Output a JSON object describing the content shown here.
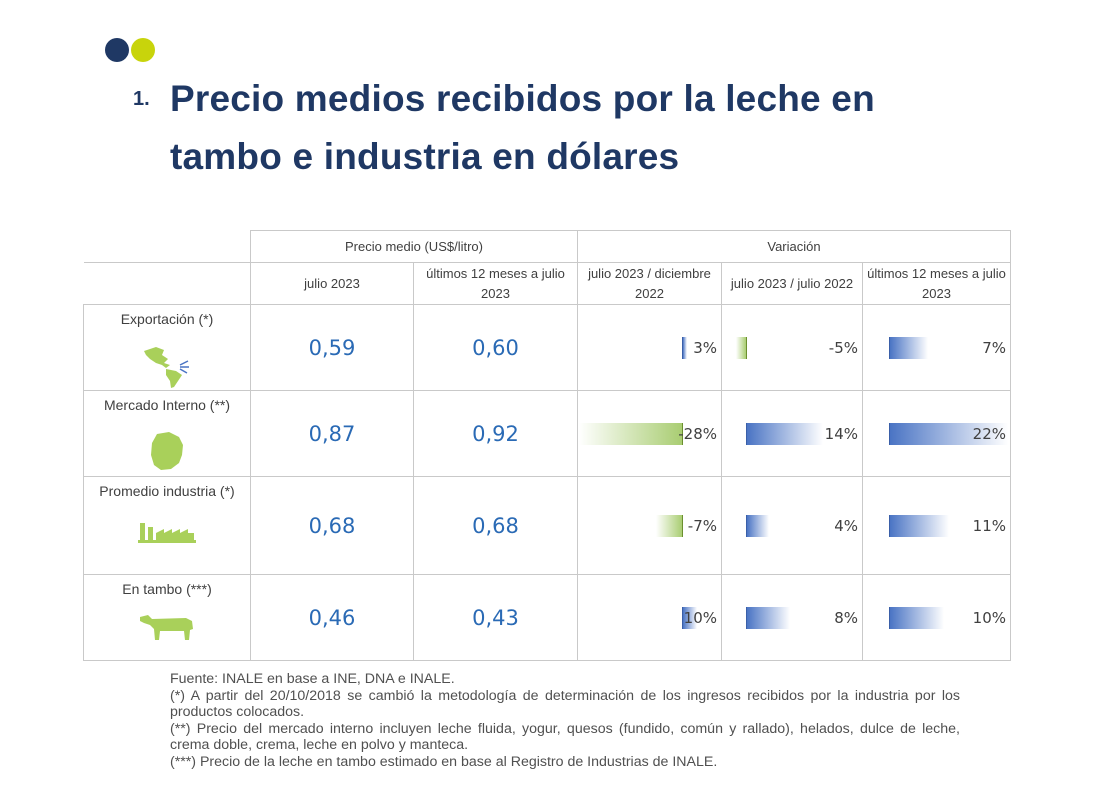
{
  "slide": {
    "number": "1.",
    "title": "Precio medios recibidos por la leche en tambo e industria en dólares"
  },
  "table": {
    "group_headers": {
      "price": "Precio medio (US$/litro)",
      "variation": "Variación"
    },
    "column_headers": [
      "julio 2023",
      "últimos 12 meses a julio 2023",
      "julio 2023 / diciembre 2022",
      "julio 2023 / julio 2022",
      "últimos 12 meses a julio 2023"
    ],
    "rows": [
      {
        "label": "Exportación (*)",
        "icon": "americas-map-icon",
        "price_month": "0,59",
        "price_12m": "0,60",
        "var_dec": "3%",
        "var_dec_value": 3,
        "var_year": "-5%",
        "var_year_value": -5,
        "var_12m": "7%",
        "var_12m_value": 7
      },
      {
        "label": "Mercado Interno (**)",
        "icon": "uruguay-map-icon",
        "price_month": "0,87",
        "price_12m": "0,92",
        "var_dec": "-28%",
        "var_dec_value": -28,
        "var_year": "14%",
        "var_year_value": 14,
        "var_12m": "22%",
        "var_12m_value": 22
      },
      {
        "label": "Promedio industria (*)",
        "icon": "factory-icon",
        "price_month": "0,68",
        "price_12m": "0,68",
        "var_dec": "-7%",
        "var_dec_value": -7,
        "var_year": "4%",
        "var_year_value": 4,
        "var_12m": "11%",
        "var_12m_value": 11
      },
      {
        "label": "En tambo (***)",
        "icon": "cow-icon",
        "price_month": "0,46",
        "price_12m": "0,43",
        "var_dec": "10%",
        "var_dec_value": 10,
        "var_year": "8%",
        "var_year_value": 8,
        "var_12m": "10%",
        "var_12m_value": 10
      }
    ]
  },
  "notes": [
    "Fuente: INALE en base a INE, DNA e INALE.",
    "(*) A partir del 20/10/2018 se cambió la metodología de determinación de los ingresos recibidos por la industria por los productos colocados.",
    "(**) Precio del mercado interno incluyen leche fluida, yogur, quesos (fundido, común y rallado), helados, dulce de leche, crema doble, crema, leche en polvo y manteca.",
    "(***) Precio de la leche en tambo estimado en base al Registro de Industrias de INALE."
  ],
  "colors": {
    "title": "#1f3864",
    "dot_navy": "#1f3864",
    "dot_lime": "#c8d40b",
    "price_text": "#2a6ab5",
    "bar_positive": "#4a74c4",
    "bar_negative": "#a9cd72",
    "icon_green": "#a9d05a"
  }
}
